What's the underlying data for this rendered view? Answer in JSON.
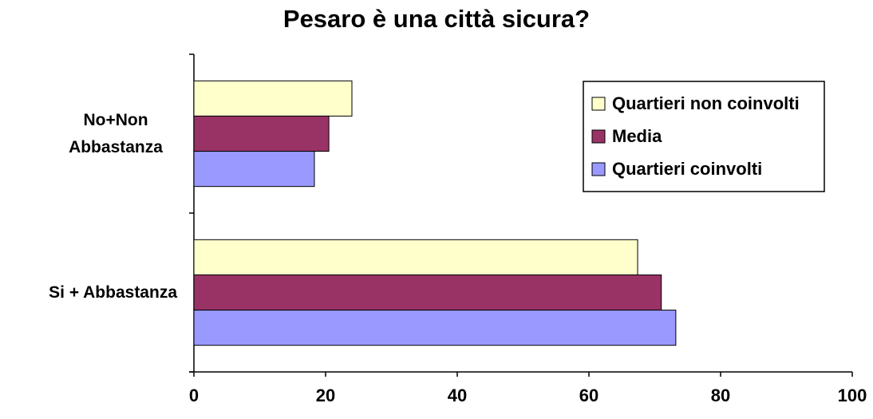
{
  "chart_data": {
    "type": "hbar",
    "title": "Pesaro è una città sicura?",
    "categories": [
      "No+Non Abbastanza",
      "Si + Abbastanza"
    ],
    "series": [
      {
        "name": "Quartieri non coinvolti",
        "color": "#ffffcc",
        "values": [
          24,
          67.4
        ]
      },
      {
        "name": "Media",
        "color": "#993366",
        "values": [
          20.5,
          71
        ]
      },
      {
        "name": "Quartieri coinvolti",
        "color": "#9999ff",
        "values": [
          18.3,
          73.2
        ]
      }
    ],
    "xlim": [
      0,
      100
    ],
    "xticks": [
      0,
      20,
      40,
      60,
      80,
      100
    ],
    "legend": "right"
  }
}
